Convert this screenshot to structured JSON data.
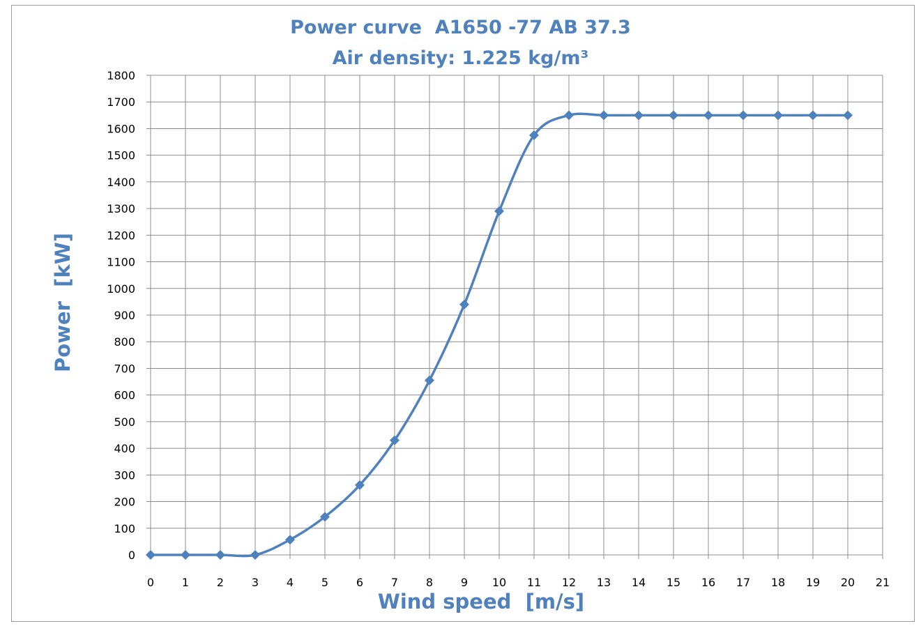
{
  "chart_data": {
    "type": "line",
    "title": "Power curve  A1650 -77 AB 37.3",
    "subtitle": "Air density: 1.225 kg/m³",
    "xlabel": "Wind speed  [m/s]",
    "ylabel": "Power  [kW]",
    "xlim": [
      0,
      21
    ],
    "ylim": [
      0,
      1800
    ],
    "x_ticks": [
      0,
      1,
      2,
      3,
      4,
      5,
      6,
      7,
      8,
      9,
      10,
      11,
      12,
      13,
      14,
      15,
      16,
      17,
      18,
      19,
      20,
      21
    ],
    "y_ticks": [
      0,
      100,
      200,
      300,
      400,
      500,
      600,
      700,
      800,
      900,
      1000,
      1100,
      1200,
      1300,
      1400,
      1500,
      1600,
      1700,
      1800
    ],
    "grid": true,
    "legend": "none",
    "smooth": true,
    "marker": "diamond",
    "color": "#4f81bd",
    "series": [
      {
        "x": [
          0,
          1,
          2,
          3,
          4,
          5,
          6,
          7,
          8,
          9,
          10,
          11,
          12,
          13,
          14,
          15,
          16,
          17,
          18,
          19,
          20
        ],
        "values": [
          0,
          0,
          0,
          0,
          57,
          143,
          262,
          430,
          655,
          940,
          1290,
          1575,
          1650,
          1650,
          1650,
          1650,
          1650,
          1650,
          1650,
          1650,
          1650
        ]
      }
    ]
  }
}
